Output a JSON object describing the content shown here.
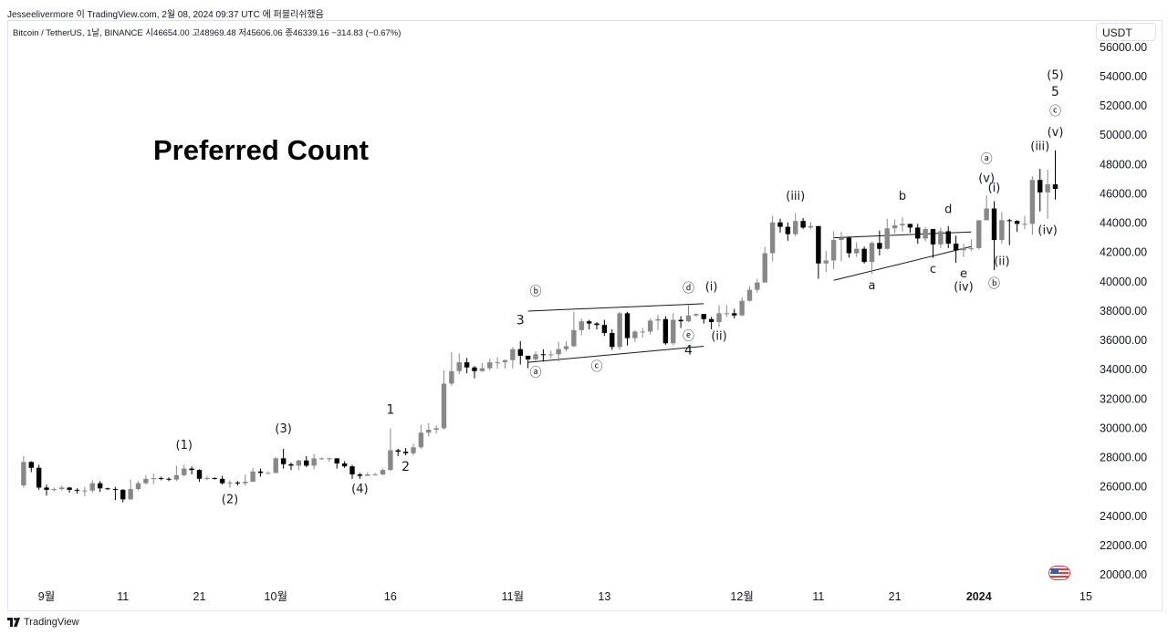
{
  "header": {
    "publish_line": "Jesseelivermore 이 TradingView.com, 2월 08, 2024 09:37 UTC 에 퍼블리쉬했음",
    "symbol_line": "Bitcoin / TetherUS, 1날, BINANCE  시46654.00  고48969.48  저45606.06  종46339.16  −314.83 (−0.67%)"
  },
  "currency": "USDT",
  "footer": {
    "brand": "TradingView",
    "logo_icon": "tradingview-logo-icon"
  },
  "flag_icon": "us-flag-icon",
  "chart_data": {
    "type": "candlestick",
    "title": "Preferred Count",
    "ylim": [
      19000,
      57500
    ],
    "y_ticks": [
      20000,
      22000,
      24000,
      26000,
      28000,
      30000,
      32000,
      34000,
      36000,
      38000,
      40000,
      42000,
      44000,
      46000,
      48000,
      50000,
      52000,
      54000,
      56000
    ],
    "y_tick_labels": [
      "20000.00",
      "22000.00",
      "24000.00",
      "26000.00",
      "28000.00",
      "30000.00",
      "32000.00",
      "34000.00",
      "36000.00",
      "38000.00",
      "40000.00",
      "42000.00",
      "44000.00",
      "46000.00",
      "48000.00",
      "50000.00",
      "52000.00",
      "54000.00",
      "56000.00"
    ],
    "x_tick_labels": [
      {
        "label": "9월",
        "date": "2023-09-01"
      },
      {
        "label": "11",
        "date": "2023-09-11"
      },
      {
        "label": "21",
        "date": "2023-09-21"
      },
      {
        "label": "10월",
        "date": "2023-10-01"
      },
      {
        "label": "16",
        "date": "2023-10-16"
      },
      {
        "label": "11월",
        "date": "2023-11-01"
      },
      {
        "label": "13",
        "date": "2023-11-13"
      },
      {
        "label": "12월",
        "date": "2023-12-01"
      },
      {
        "label": "11",
        "date": "2023-12-11"
      },
      {
        "label": "21",
        "date": "2023-12-21"
      },
      {
        "label": "2024",
        "date": "2024-01-01"
      },
      {
        "label": "15",
        "date": "2024-01-15"
      }
    ],
    "candle_colors": {
      "up": "#888888",
      "down": "#000000"
    },
    "candles": [
      [
        "2023-08-29",
        26100,
        28100,
        25950,
        27700
      ],
      [
        "2023-08-30",
        27700,
        27750,
        27000,
        27300
      ],
      [
        "2023-08-31",
        27300,
        27500,
        25800,
        25950
      ],
      [
        "2023-09-01",
        25950,
        26150,
        25400,
        25800
      ],
      [
        "2023-09-02",
        25800,
        25950,
        25700,
        25850
      ],
      [
        "2023-09-03",
        25850,
        26100,
        25750,
        25950
      ],
      [
        "2023-09-04",
        25950,
        26000,
        25600,
        25800
      ],
      [
        "2023-09-05",
        25800,
        25900,
        25550,
        25750
      ],
      [
        "2023-09-06",
        25750,
        26000,
        25350,
        25750
      ],
      [
        "2023-09-07",
        25750,
        26450,
        25600,
        26250
      ],
      [
        "2023-09-08",
        26250,
        26400,
        25650,
        25900
      ],
      [
        "2023-09-09",
        25900,
        25950,
        25800,
        25850
      ],
      [
        "2023-09-10",
        25850,
        26000,
        25100,
        25800
      ],
      [
        "2023-09-11",
        25800,
        25850,
        24950,
        25150
      ],
      [
        "2023-09-12",
        25150,
        26500,
        25100,
        25850
      ],
      [
        "2023-09-13",
        25850,
        26400,
        25750,
        26250
      ],
      [
        "2023-09-14",
        26250,
        26800,
        26150,
        26550
      ],
      [
        "2023-09-15",
        26550,
        26900,
        26200,
        26600
      ],
      [
        "2023-09-16",
        26600,
        26700,
        26450,
        26550
      ],
      [
        "2023-09-17",
        26550,
        26650,
        26400,
        26500
      ],
      [
        "2023-09-18",
        26500,
        27450,
        26400,
        26800
      ],
      [
        "2023-09-19",
        26800,
        27500,
        26700,
        27250
      ],
      [
        "2023-09-20",
        27250,
        27400,
        26850,
        27150
      ],
      [
        "2023-09-21",
        27150,
        27200,
        26350,
        26550
      ],
      [
        "2023-09-22",
        26550,
        26750,
        26450,
        26600
      ],
      [
        "2023-09-23",
        26600,
        26650,
        26500,
        26550
      ],
      [
        "2023-09-24",
        26550,
        26750,
        26150,
        26250
      ],
      [
        "2023-09-25",
        26250,
        26450,
        25950,
        26300
      ],
      [
        "2023-09-26",
        26300,
        26400,
        26100,
        26250
      ],
      [
        "2023-09-27",
        26250,
        26850,
        26100,
        26350
      ],
      [
        "2023-09-28",
        26350,
        27300,
        26350,
        27050
      ],
      [
        "2023-09-29",
        27050,
        27250,
        26700,
        26950
      ],
      [
        "2023-09-30",
        26950,
        27050,
        26900,
        26950
      ],
      [
        "2023-10-01",
        26950,
        28050,
        26950,
        27950
      ],
      [
        "2023-10-02",
        27950,
        28600,
        27250,
        27550
      ],
      [
        "2023-10-03",
        27550,
        27650,
        27150,
        27450
      ],
      [
        "2023-10-04",
        27450,
        27850,
        27150,
        27800
      ],
      [
        "2023-10-05",
        27800,
        28100,
        27350,
        27450
      ],
      [
        "2023-10-06",
        27450,
        28250,
        27200,
        27950
      ],
      [
        "2023-10-07",
        27950,
        28000,
        27850,
        27950
      ],
      [
        "2023-10-08",
        27950,
        28000,
        27700,
        27950
      ],
      [
        "2023-10-09",
        27950,
        27950,
        27250,
        27600
      ],
      [
        "2023-10-10",
        27600,
        27750,
        27300,
        27400
      ],
      [
        "2023-10-11",
        27400,
        27500,
        26550,
        26850
      ],
      [
        "2023-10-12",
        26850,
        26950,
        26550,
        26750
      ],
      [
        "2023-10-13",
        26750,
        27000,
        26800,
        26850
      ],
      [
        "2023-10-14",
        26850,
        26950,
        26800,
        26850
      ],
      [
        "2023-10-15",
        26850,
        27250,
        26800,
        27150
      ],
      [
        "2023-10-16",
        27150,
        30000,
        27100,
        28500
      ],
      [
        "2023-10-17",
        28500,
        28600,
        28100,
        28400
      ],
      [
        "2023-10-18",
        28400,
        28650,
        28150,
        28300
      ],
      [
        "2023-10-19",
        28300,
        28950,
        28150,
        28700
      ],
      [
        "2023-10-20",
        28700,
        30250,
        28600,
        29700
      ],
      [
        "2023-10-21",
        29700,
        30350,
        29450,
        29900
      ],
      [
        "2023-10-22",
        29900,
        30200,
        29650,
        30000
      ],
      [
        "2023-10-23",
        30000,
        33950,
        29900,
        33050
      ],
      [
        "2023-10-24",
        33050,
        35200,
        32900,
        33900
      ],
      [
        "2023-10-25",
        33900,
        35100,
        33700,
        34500
      ],
      [
        "2023-10-26",
        34500,
        34800,
        33750,
        34150
      ],
      [
        "2023-10-27",
        34150,
        34250,
        33400,
        33900
      ],
      [
        "2023-10-28",
        33900,
        34450,
        33850,
        34100
      ],
      [
        "2023-10-29",
        34100,
        34750,
        33950,
        34500
      ],
      [
        "2023-10-30",
        34500,
        34850,
        34050,
        34500
      ],
      [
        "2023-10-31",
        34500,
        34700,
        34100,
        34650
      ],
      [
        "2023-11-01",
        34650,
        35550,
        34100,
        35400
      ],
      [
        "2023-11-02",
        35400,
        35950,
        34350,
        34950
      ],
      [
        "2023-11-03",
        34950,
        34950,
        34100,
        34700
      ],
      [
        "2023-11-04",
        34700,
        35250,
        34600,
        35050
      ],
      [
        "2023-11-05",
        35050,
        35400,
        34550,
        35000
      ],
      [
        "2023-11-06",
        35000,
        35300,
        34750,
        35050
      ],
      [
        "2023-11-07",
        35050,
        35900,
        34550,
        35400
      ],
      [
        "2023-11-08",
        35400,
        35950,
        35250,
        35600
      ],
      [
        "2023-11-09",
        35600,
        37950,
        35550,
        36700
      ],
      [
        "2023-11-10",
        36700,
        37500,
        36350,
        37300
      ],
      [
        "2023-11-11",
        37300,
        37400,
        36750,
        37150
      ],
      [
        "2023-11-12",
        37150,
        37250,
        36750,
        37050
      ],
      [
        "2023-11-13",
        37050,
        37400,
        36300,
        36500
      ],
      [
        "2023-11-14",
        36500,
        36750,
        35350,
        35550
      ],
      [
        "2023-11-15",
        35550,
        37950,
        35350,
        37850
      ],
      [
        "2023-11-16",
        37850,
        37950,
        35650,
        36150
      ],
      [
        "2023-11-17",
        36150,
        36700,
        35900,
        36600
      ],
      [
        "2023-11-18",
        36600,
        36850,
        36200,
        36600
      ],
      [
        "2023-11-19",
        36600,
        37500,
        36400,
        37350
      ],
      [
        "2023-11-20",
        37350,
        37750,
        36700,
        37450
      ],
      [
        "2023-11-21",
        37450,
        37650,
        35700,
        35800
      ],
      [
        "2023-11-22",
        35800,
        37850,
        35650,
        37400
      ],
      [
        "2023-11-23",
        37400,
        37650,
        36850,
        37300
      ],
      [
        "2023-11-24",
        37300,
        38400,
        37250,
        37700
      ],
      [
        "2023-11-25",
        37700,
        37850,
        37600,
        37800
      ],
      [
        "2023-11-26",
        37800,
        37800,
        37150,
        37450
      ],
      [
        "2023-11-27",
        37450,
        37600,
        36750,
        37250
      ],
      [
        "2023-11-28",
        37250,
        38400,
        36900,
        37850
      ],
      [
        "2023-11-29",
        37850,
        38400,
        37600,
        37850
      ],
      [
        "2023-11-30",
        37850,
        38150,
        37500,
        37700
      ],
      [
        "2023-12-01",
        37700,
        38950,
        37650,
        38700
      ],
      [
        "2023-12-02",
        38700,
        39700,
        38650,
        39450
      ],
      [
        "2023-12-03",
        39450,
        40200,
        39250,
        39950
      ],
      [
        "2023-12-04",
        39950,
        42400,
        39950,
        41950
      ],
      [
        "2023-12-05",
        41950,
        44500,
        41400,
        44050
      ],
      [
        "2023-12-06",
        44050,
        44300,
        43350,
        43750
      ],
      [
        "2023-12-07",
        43750,
        44050,
        42800,
        43250
      ],
      [
        "2023-12-08",
        43250,
        44700,
        43100,
        44150
      ],
      [
        "2023-12-09",
        44150,
        44350,
        43600,
        43700
      ],
      [
        "2023-12-10",
        43700,
        44050,
        43600,
        43800
      ],
      [
        "2023-12-11",
        43800,
        43800,
        40200,
        41250
      ],
      [
        "2023-12-12",
        41250,
        42100,
        40650,
        41450
      ],
      [
        "2023-12-13",
        41450,
        43450,
        40850,
        42850
      ],
      [
        "2023-12-14",
        42850,
        43400,
        41400,
        43000
      ],
      [
        "2023-12-15",
        43000,
        43100,
        41650,
        41950
      ],
      [
        "2023-12-16",
        41950,
        42700,
        41700,
        42250
      ],
      [
        "2023-12-17",
        42250,
        42400,
        41250,
        41350
      ],
      [
        "2023-12-18",
        41350,
        42750,
        40550,
        42650
      ],
      [
        "2023-12-19",
        42650,
        43500,
        41800,
        42250
      ],
      [
        "2023-12-20",
        42250,
        44300,
        42200,
        43650
      ],
      [
        "2023-12-21",
        43650,
        44250,
        43300,
        43850
      ],
      [
        "2023-12-22",
        43850,
        44400,
        43400,
        43950
      ],
      [
        "2023-12-23",
        43950,
        43950,
        43350,
        43700
      ],
      [
        "2023-12-24",
        43700,
        43950,
        42600,
        42950
      ],
      [
        "2023-12-25",
        42950,
        43750,
        42750,
        43600
      ],
      [
        "2023-12-26",
        43600,
        43600,
        41650,
        42550
      ],
      [
        "2023-12-27",
        42550,
        43700,
        42300,
        43450
      ],
      [
        "2023-12-28",
        43450,
        43800,
        42300,
        42600
      ],
      [
        "2023-12-29",
        42600,
        43150,
        41300,
        42150
      ],
      [
        "2023-12-30",
        42150,
        42600,
        41700,
        42300
      ],
      [
        "2023-12-31",
        42300,
        42900,
        42100,
        42300
      ],
      [
        "2024-01-01",
        42300,
        44200,
        42200,
        44200
      ],
      [
        "2024-01-02",
        44200,
        45900,
        44200,
        45000
      ],
      [
        "2024-01-03",
        45000,
        45500,
        40800,
        42850
      ],
      [
        "2024-01-04",
        42850,
        44750,
        42600,
        44200
      ],
      [
        "2024-01-05",
        44200,
        44300,
        42500,
        44150
      ],
      [
        "2024-01-06",
        44150,
        44200,
        43400,
        43950
      ],
      [
        "2024-01-07",
        43950,
        44500,
        43600,
        43950
      ],
      [
        "2024-01-08",
        43950,
        47200,
        43200,
        46950
      ],
      [
        "2024-01-09",
        46950,
        47700,
        44800,
        46100
      ],
      [
        "2024-01-10",
        46100,
        47650,
        44300,
        46650
      ],
      [
        "2024-01-11",
        46650,
        48969,
        45606,
        46339
      ]
    ],
    "annotations": [
      {
        "text": "(1)",
        "date": "2023-09-19",
        "price": 28600
      },
      {
        "text": "(2)",
        "date": "2023-09-25",
        "price": 24900
      },
      {
        "text": "(3)",
        "date": "2023-10-02",
        "price": 29700
      },
      {
        "text": "(4)",
        "date": "2023-10-12",
        "price": 25600
      },
      {
        "text": "1",
        "date": "2023-10-16",
        "price": 31000
      },
      {
        "text": "2",
        "date": "2023-10-18",
        "price": 27100
      },
      {
        "text": "3",
        "date": "2023-11-02",
        "price": 37100
      },
      {
        "text": "ⓑ",
        "date": "2023-11-04",
        "price": 39100
      },
      {
        "text": "ⓓ",
        "date": "2023-11-24",
        "price": 39300
      },
      {
        "text": "(i)",
        "date": "2023-11-27",
        "price": 39400
      },
      {
        "text": "ⓐ",
        "date": "2023-11-04",
        "price": 33550
      },
      {
        "text": "ⓒ",
        "date": "2023-11-12",
        "price": 33950
      },
      {
        "text": "ⓔ",
        "date": "2023-11-24",
        "price": 36050
      },
      {
        "text": "4",
        "date": "2023-11-24",
        "price": 35050
      },
      {
        "text": "(ii)",
        "date": "2023-11-28",
        "price": 36050
      },
      {
        "text": "(iii)",
        "date": "2023-12-08",
        "price": 45600
      },
      {
        "text": "b",
        "date": "2023-12-22",
        "price": 45600
      },
      {
        "text": "d",
        "date": "2023-12-28",
        "price": 44700
      },
      {
        "text": "a",
        "date": "2023-12-18",
        "price": 39500
      },
      {
        "text": "c",
        "date": "2023-12-26",
        "price": 40600
      },
      {
        "text": "e",
        "date": "2023-12-30",
        "price": 40300
      },
      {
        "text": "(iv)",
        "date": "2023-12-30",
        "price": 39400
      },
      {
        "text": "ⓐ",
        "date": "2024-01-02",
        "price": 48100
      },
      {
        "text": "(v)",
        "date": "2024-01-02",
        "price": 46800
      },
      {
        "text": "(i)",
        "date": "2024-01-03",
        "price": 46150
      },
      {
        "text": "(ii)",
        "date": "2024-01-04",
        "price": 41150
      },
      {
        "text": "ⓑ",
        "date": "2024-01-03",
        "price": 39600
      },
      {
        "text": "(iii)",
        "date": "2024-01-09",
        "price": 49000
      },
      {
        "text": "(iv)",
        "date": "2024-01-10",
        "price": 43250
      },
      {
        "text": "(v)",
        "date": "2024-01-11",
        "price": 49950
      },
      {
        "text": "ⓒ",
        "date": "2024-01-11",
        "price": 51400
      },
      {
        "text": "5",
        "date": "2024-01-11",
        "price": 52700
      },
      {
        "text": "(5)",
        "date": "2024-01-11",
        "price": 53850
      }
    ],
    "trendlines": [
      {
        "from": [
          "2023-11-03",
          38000
        ],
        "to": [
          "2023-11-26",
          38500
        ]
      },
      {
        "from": [
          "2023-11-03",
          34500
        ],
        "to": [
          "2023-11-26",
          35600
        ]
      },
      {
        "from": [
          "2023-12-13",
          43000
        ],
        "to": [
          "2023-12-31",
          43400
        ]
      },
      {
        "from": [
          "2023-12-13",
          40100
        ],
        "to": [
          "2023-12-31",
          42400
        ]
      }
    ]
  }
}
